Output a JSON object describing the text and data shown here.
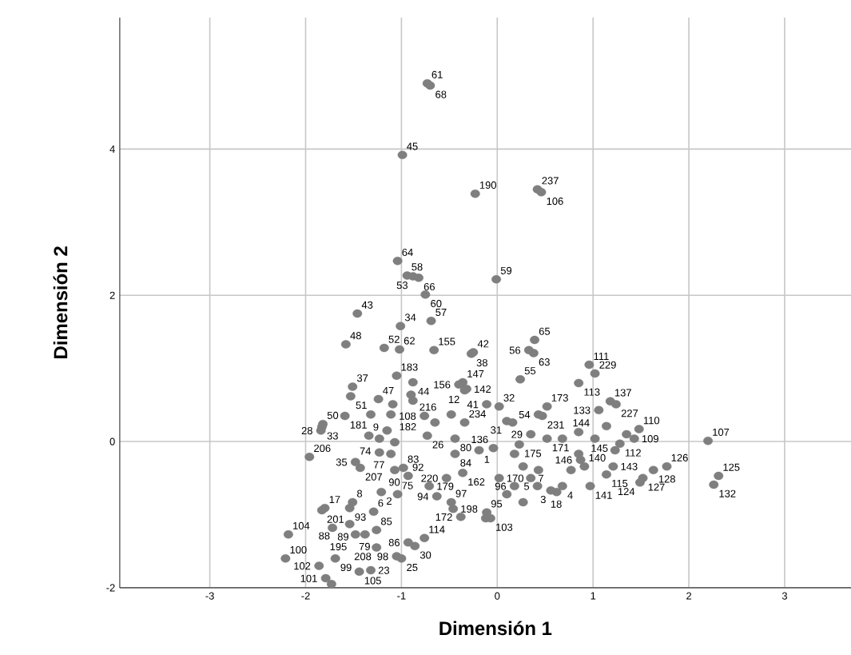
{
  "chart_data": {
    "type": "scatter",
    "xlabel": "Dimensión 1",
    "ylabel": "Dimensión 2",
    "xlim": [
      -3.94,
      3.9
    ],
    "ylim": [
      -2,
      5.8
    ],
    "xticks": [
      -3,
      -2,
      -1,
      0,
      1,
      2,
      3
    ],
    "yticks": [
      -2,
      0,
      2,
      4
    ],
    "grid": true,
    "marker": "circle",
    "series": [
      {
        "color": "#7f7f7f",
        "x": [
          -0.73,
          -0.7,
          -0.99,
          -0.23,
          0.42,
          0.46,
          -0.01,
          -1.04,
          -0.94,
          -0.88,
          -0.82,
          -0.75,
          -1.46,
          -1.01,
          -0.69,
          -1.58,
          -1.18,
          -1.02,
          -0.66,
          -0.25,
          -0.27,
          0.39,
          0.33,
          0.38,
          0.96,
          1.02,
          0.85,
          0.24,
          -0.36,
          -0.32,
          1.18,
          1.24,
          1.06,
          0.52,
          0.43,
          0.47,
          0.02,
          -0.11,
          -0.34,
          -0.4,
          -1.05,
          -0.88,
          -1.51,
          -1.53,
          -1.82,
          -1.83,
          -1.84,
          -1.59,
          -1.24,
          -0.9,
          -0.76,
          -0.34,
          -1.11,
          0.1,
          0.35,
          0.52,
          0.68,
          0.85,
          0.23,
          -0.73,
          -0.44,
          -1.34,
          -1.23,
          -0.19,
          -0.04,
          -1.96,
          -1.23,
          -0.44,
          -0.98,
          -1.48,
          -1.43,
          -1.07,
          -0.93,
          -0.71,
          -0.53,
          -0.36,
          0.02,
          0.87,
          0.35,
          0.18,
          0.42,
          0.56,
          0.68,
          0.62,
          0.97,
          0.91,
          1.21,
          1.14,
          1.28,
          1.77,
          1.63,
          1.52,
          1.49,
          1.48,
          1.43,
          2.2,
          2.31,
          2.26,
          -1.21,
          -1.04,
          -0.63,
          -0.48,
          -1.51,
          -1.54,
          -1.8,
          -1.83,
          -1.29,
          -0.46,
          -0.38,
          -0.11,
          -1.72,
          -2.18,
          -1.38,
          -1.26,
          -0.93,
          -0.76,
          -0.07,
          -2.21,
          -1.54,
          -1.48,
          -1.26,
          -1.86,
          -1.69,
          -1.05,
          -1.0,
          -0.86,
          -1.44,
          -1.32,
          -1.79,
          -1.73,
          -1.09,
          -0.88,
          -0.65,
          -0.48,
          0.16,
          -1.07,
          -1.11,
          0.18,
          0.27,
          0.43,
          0.1,
          0.27,
          1.02,
          1.14,
          1.35,
          1.23,
          0.85,
          0.77,
          -1.32,
          -1.15,
          -0.12
        ],
        "values": [
          4.9,
          4.87,
          3.92,
          3.39,
          3.45,
          3.41,
          2.22,
          2.47,
          2.27,
          2.26,
          2.24,
          2.01,
          1.75,
          1.58,
          1.65,
          1.33,
          1.28,
          1.26,
          1.25,
          1.22,
          1.2,
          1.39,
          1.25,
          1.21,
          1.05,
          0.93,
          0.8,
          0.85,
          0.81,
          0.72,
          0.55,
          0.51,
          0.43,
          0.48,
          0.37,
          0.35,
          0.48,
          0.51,
          0.7,
          0.78,
          0.9,
          0.81,
          0.75,
          0.62,
          0.24,
          0.2,
          0.15,
          0.35,
          0.58,
          0.64,
          0.35,
          0.26,
          0.37,
          0.28,
          0.1,
          0.04,
          0.04,
          0.13,
          -0.04,
          0.08,
          0.04,
          0.08,
          0.04,
          -0.12,
          -0.09,
          -0.21,
          -0.15,
          -0.17,
          -0.36,
          -0.28,
          -0.36,
          -0.39,
          -0.47,
          -0.61,
          -0.5,
          -0.43,
          -0.5,
          -0.25,
          -0.5,
          -0.61,
          -0.61,
          -0.67,
          -0.61,
          -0.69,
          -0.61,
          -0.34,
          -0.34,
          -0.45,
          -0.03,
          -0.34,
          -0.39,
          -0.5,
          -0.56,
          0.17,
          0.04,
          0.01,
          -0.47,
          -0.59,
          -0.69,
          -0.72,
          -0.75,
          -0.83,
          -0.83,
          -0.91,
          -0.91,
          -0.94,
          -0.96,
          -0.92,
          -1.03,
          -0.97,
          -1.18,
          -1.27,
          -1.27,
          -1.21,
          -1.38,
          -1.32,
          -1.05,
          -1.6,
          -1.13,
          -1.27,
          -1.45,
          -1.7,
          -1.6,
          -1.57,
          -1.6,
          -1.43,
          -1.78,
          -1.76,
          -1.87,
          -1.95,
          0.51,
          0.56,
          0.26,
          0.37,
          0.26,
          -0.01,
          -0.17,
          -0.17,
          -0.34,
          -0.39,
          -0.72,
          -0.83,
          0.04,
          0.21,
          0.1,
          -0.12,
          -0.17,
          -0.39,
          0.37,
          0.15,
          -1.05
        ]
      }
    ],
    "annotations": [
      {
        "text": "61",
        "x": -0.73,
        "y": 4.9
      },
      {
        "text": "68",
        "x": -0.7,
        "y": 4.87
      },
      {
        "text": "45",
        "x": -0.99,
        "y": 3.92
      },
      {
        "text": "190",
        "x": -0.23,
        "y": 3.39
      },
      {
        "text": "237",
        "x": 0.42,
        "y": 3.45
      },
      {
        "text": "106",
        "x": 0.46,
        "y": 3.41
      },
      {
        "text": "59",
        "x": -0.01,
        "y": 2.22
      },
      {
        "text": "64",
        "x": -1.04,
        "y": 2.47
      },
      {
        "text": "58",
        "x": -0.94,
        "y": 2.27
      },
      {
        "text": "53",
        "x": -0.88,
        "y": 2.26
      },
      {
        "text": "66",
        "x": -0.82,
        "y": 2.24
      },
      {
        "text": "60",
        "x": -0.75,
        "y": 2.01
      },
      {
        "text": "43",
        "x": -1.46,
        "y": 1.75
      },
      {
        "text": "34",
        "x": -1.01,
        "y": 1.58
      },
      {
        "text": "57",
        "x": -0.69,
        "y": 1.65
      },
      {
        "text": "48",
        "x": -1.58,
        "y": 1.33
      },
      {
        "text": "52",
        "x": -1.18,
        "y": 1.28
      },
      {
        "text": "62",
        "x": -1.02,
        "y": 1.26
      },
      {
        "text": "155",
        "x": -0.66,
        "y": 1.25
      },
      {
        "text": "42",
        "x": -0.25,
        "y": 1.22
      },
      {
        "text": "38",
        "x": -0.27,
        "y": 1.2
      },
      {
        "text": "65",
        "x": 0.39,
        "y": 1.39
      },
      {
        "text": "56",
        "x": 0.33,
        "y": 1.25
      },
      {
        "text": "63",
        "x": 0.38,
        "y": 1.21
      },
      {
        "text": "111",
        "x": 0.96,
        "y": 1.05
      },
      {
        "text": "229",
        "x": 1.02,
        "y": 0.93
      },
      {
        "text": "113",
        "x": 0.85,
        "y": 0.8
      },
      {
        "text": "55",
        "x": 0.24,
        "y": 0.85
      },
      {
        "text": "147",
        "x": -0.36,
        "y": 0.81
      },
      {
        "text": "142",
        "x": -0.32,
        "y": 0.72
      },
      {
        "text": "137",
        "x": 1.18,
        "y": 0.55
      },
      {
        "text": "227",
        "x": 1.24,
        "y": 0.51
      },
      {
        "text": "133",
        "x": 1.06,
        "y": 0.43
      },
      {
        "text": "173",
        "x": 0.52,
        "y": 0.48
      },
      {
        "text": "54",
        "x": 0.43,
        "y": 0.37
      },
      {
        "text": "231",
        "x": 0.47,
        "y": 0.35
      },
      {
        "text": "32",
        "x": 0.02,
        "y": 0.48
      },
      {
        "text": "41",
        "x": -0.11,
        "y": 0.51
      },
      {
        "text": "12",
        "x": -0.34,
        "y": 0.7
      },
      {
        "text": "156",
        "x": -0.4,
        "y": 0.78
      },
      {
        "text": "183",
        "x": -1.05,
        "y": 0.9
      },
      {
        "text": "44",
        "x": -0.88,
        "y": 0.81
      },
      {
        "text": "37",
        "x": -1.51,
        "y": 0.75
      },
      {
        "text": "51",
        "x": -1.53,
        "y": 0.62
      },
      {
        "text": "50",
        "x": -1.82,
        "y": 0.24
      },
      {
        "text": "33",
        "x": -1.83,
        "y": 0.2
      },
      {
        "text": "28",
        "x": -1.84,
        "y": 0.15
      },
      {
        "text": "181",
        "x": -1.59,
        "y": 0.35
      },
      {
        "text": "47",
        "x": -1.24,
        "y": 0.58
      },
      {
        "text": "216",
        "x": -0.9,
        "y": 0.64
      },
      {
        "text": "108",
        "x": -0.76,
        "y": 0.35
      },
      {
        "text": "234",
        "x": -0.34,
        "y": 0.26
      },
      {
        "text": "182",
        "x": -1.11,
        "y": 0.37
      },
      {
        "text": "31",
        "x": 0.1,
        "y": 0.28
      },
      {
        "text": "29",
        "x": 0.35,
        "y": 0.1
      },
      {
        "text": "171",
        "x": 0.52,
        "y": 0.04
      },
      {
        "text": "144",
        "x": 0.68,
        "y": 0.04
      },
      {
        "text": "145",
        "x": 0.85,
        "y": 0.13
      },
      {
        "text": "175",
        "x": 0.23,
        "y": -0.04
      },
      {
        "text": "26",
        "x": -0.73,
        "y": 0.08
      },
      {
        "text": "80",
        "x": -0.44,
        "y": 0.04
      },
      {
        "text": "9",
        "x": -1.34,
        "y": 0.08
      },
      {
        "text": "74",
        "x": -1.23,
        "y": 0.04
      },
      {
        "text": "1",
        "x": -0.19,
        "y": -0.12
      },
      {
        "text": "136",
        "x": -0.04,
        "y": -0.09
      },
      {
        "text": "206",
        "x": -1.96,
        "y": -0.21
      },
      {
        "text": "77",
        "x": -1.23,
        "y": -0.15
      },
      {
        "text": "84",
        "x": -0.44,
        "y": -0.17
      },
      {
        "text": "83",
        "x": -0.98,
        "y": -0.36
      },
      {
        "text": "35",
        "x": -1.48,
        "y": -0.28
      },
      {
        "text": "207",
        "x": -1.43,
        "y": -0.36
      },
      {
        "text": "90",
        "x": -1.07,
        "y": -0.39
      },
      {
        "text": "92",
        "x": -0.93,
        "y": -0.47
      },
      {
        "text": "179",
        "x": -0.71,
        "y": -0.61
      },
      {
        "text": "220",
        "x": -0.53,
        "y": -0.5
      },
      {
        "text": "162",
        "x": -0.36,
        "y": -0.43
      },
      {
        "text": "170",
        "x": 0.02,
        "y": -0.5
      },
      {
        "text": "146",
        "x": 0.87,
        "y": -0.25
      },
      {
        "text": "7",
        "x": 0.35,
        "y": -0.5
      },
      {
        "text": "96",
        "x": 0.18,
        "y": -0.61
      },
      {
        "text": "5",
        "x": 0.42,
        "y": -0.61
      },
      {
        "text": "3",
        "x": 0.56,
        "y": -0.67
      },
      {
        "text": "4",
        "x": 0.68,
        "y": -0.61
      },
      {
        "text": "18",
        "x": 0.62,
        "y": -0.69
      },
      {
        "text": "141",
        "x": 0.97,
        "y": -0.61
      },
      {
        "text": "140",
        "x": 0.91,
        "y": -0.34
      },
      {
        "text": "143",
        "x": 1.21,
        "y": -0.34
      },
      {
        "text": "115",
        "x": 1.14,
        "y": -0.45
      },
      {
        "text": "112",
        "x": 1.28,
        "y": -0.03
      },
      {
        "text": "126",
        "x": 1.77,
        "y": -0.34
      },
      {
        "text": "128",
        "x": 1.63,
        "y": -0.39
      },
      {
        "text": "127",
        "x": 1.52,
        "y": -0.5
      },
      {
        "text": "124",
        "x": 1.49,
        "y": -0.56
      },
      {
        "text": "110",
        "x": 1.48,
        "y": 0.17
      },
      {
        "text": "109",
        "x": 1.43,
        "y": 0.04
      },
      {
        "text": "107",
        "x": 2.2,
        "y": 0.01
      },
      {
        "text": "125",
        "x": 2.31,
        "y": -0.47
      },
      {
        "text": "132",
        "x": 2.26,
        "y": -0.59
      },
      {
        "text": "2",
        "x": -1.21,
        "y": -0.69
      },
      {
        "text": "75",
        "x": -1.04,
        "y": -0.72
      },
      {
        "text": "94",
        "x": -0.63,
        "y": -0.75
      },
      {
        "text": "97",
        "x": -0.48,
        "y": -0.83
      },
      {
        "text": "8",
        "x": -1.51,
        "y": -0.83
      },
      {
        "text": "93",
        "x": -1.54,
        "y": -0.91
      },
      {
        "text": "17",
        "x": -1.8,
        "y": -0.91
      },
      {
        "text": "201",
        "x": -1.83,
        "y": -0.94
      },
      {
        "text": "6",
        "x": -1.29,
        "y": -0.96
      },
      {
        "text": "198",
        "x": -0.46,
        "y": -0.92
      },
      {
        "text": "172",
        "x": -0.38,
        "y": -1.03
      },
      {
        "text": "95",
        "x": -0.11,
        "y": -0.97
      },
      {
        "text": "89",
        "x": -1.72,
        "y": -1.18
      },
      {
        "text": "104",
        "x": -2.18,
        "y": -1.27
      },
      {
        "text": "79",
        "x": -1.38,
        "y": -1.27
      },
      {
        "text": "85",
        "x": -1.26,
        "y": -1.21
      },
      {
        "text": "86",
        "x": -0.93,
        "y": -1.38
      },
      {
        "text": "114",
        "x": -0.76,
        "y": -1.32
      },
      {
        "text": "103",
        "x": -0.07,
        "y": -1.05
      },
      {
        "text": "100",
        "x": -2.21,
        "y": -1.6
      },
      {
        "text": "88",
        "x": -1.54,
        "y": -1.13
      },
      {
        "text": "195",
        "x": -1.48,
        "y": -1.27
      },
      {
        "text": "208",
        "x": -1.26,
        "y": -1.45
      },
      {
        "text": "102",
        "x": -1.86,
        "y": -1.7
      },
      {
        "text": "99",
        "x": -1.69,
        "y": -1.6
      },
      {
        "text": "98",
        "x": -1.05,
        "y": -1.57
      },
      {
        "text": "25",
        "x": -1.0,
        "y": -1.6
      },
      {
        "text": "30",
        "x": -0.86,
        "y": -1.43
      },
      {
        "text": "105",
        "x": -1.44,
        "y": -1.78
      },
      {
        "text": "23",
        "x": -1.32,
        "y": -1.76
      },
      {
        "text": "101",
        "x": -1.79,
        "y": -1.87
      }
    ]
  }
}
